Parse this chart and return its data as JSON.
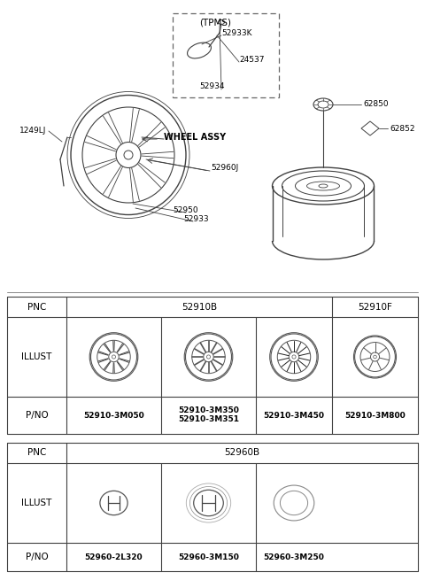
{
  "bg_color": "#ffffff",
  "line_color": "#404040",
  "text_color": "#000000",
  "table1": {
    "pnc_labels": [
      "PNC",
      "52910B",
      "52910F"
    ],
    "illust_label": "ILLUST",
    "pno_label": "P/NO",
    "pno_values": [
      "52910-3M050",
      "52910-3M350\n52910-3M351",
      "52910-3M450",
      "52910-3M800"
    ],
    "wheel_styles": [
      "sparse",
      "dense",
      "dark_dense",
      "simple"
    ]
  },
  "table2": {
    "pnc_label": "PNC",
    "pnc_value": "52960B",
    "illust_label": "ILLUST",
    "pno_label": "P/NO",
    "pno_values": [
      "52960-2L320",
      "52960-3M150",
      "52960-3M250"
    ]
  },
  "diagram": {
    "wheel_label": "WHEEL ASSY",
    "part_labels": [
      "1249LJ",
      "52960J",
      "52950",
      "52933"
    ],
    "tpms_label": "(TPMS)",
    "tpms_parts": [
      "52933K",
      "24537",
      "52934"
    ],
    "spare_parts": [
      "62850",
      "62852"
    ]
  }
}
